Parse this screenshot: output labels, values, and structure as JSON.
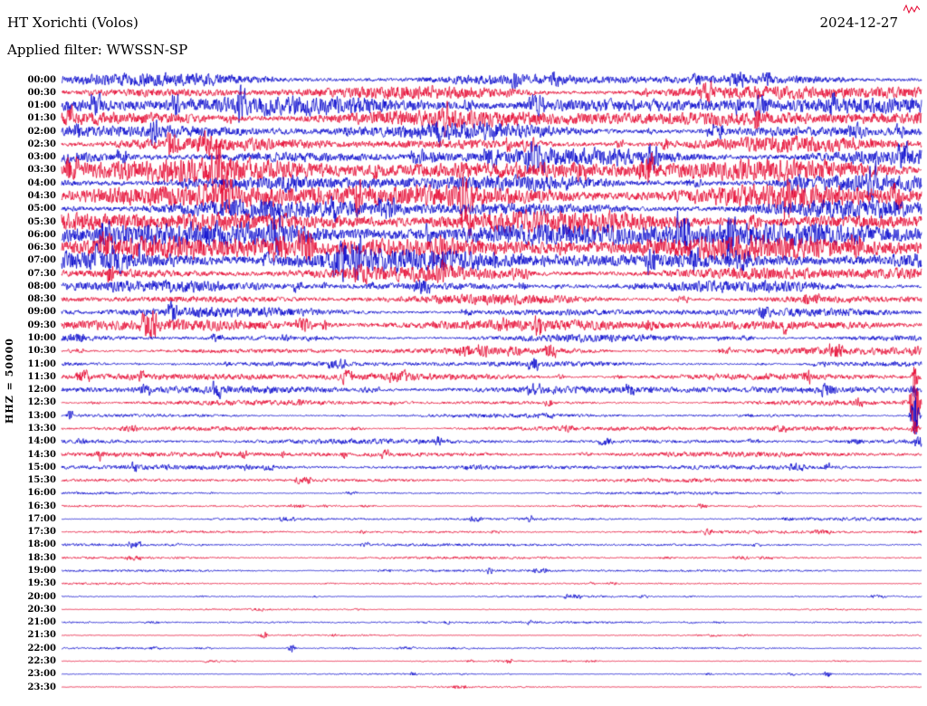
{
  "header": {
    "station": "HT Xorichti (Volos)",
    "date": "2024-12-27",
    "filter_label": "Applied filter: WWSSN-SP"
  },
  "axis": {
    "ylabel": "HHZ = 50000"
  },
  "chart_data": {
    "type": "line",
    "subtype": "helicorder-seismogram",
    "title": "HT Xorichti (Volos)",
    "date": "2024-12-27",
    "filter": "WWSSN-SP",
    "channel": "HHZ",
    "scale": 50000,
    "row_interval_minutes": 30,
    "grid": false,
    "legend": "none",
    "colors": {
      "blue": "#0000cc",
      "red": "#e4002c"
    },
    "rows": [
      {
        "time": "00:00",
        "color": "blue",
        "amplitude": 9
      },
      {
        "time": "00:30",
        "color": "red",
        "amplitude": 9.5
      },
      {
        "time": "01:00",
        "color": "blue",
        "amplitude": 10
      },
      {
        "time": "01:30",
        "color": "red",
        "amplitude": 10
      },
      {
        "time": "02:00",
        "color": "blue",
        "amplitude": 11
      },
      {
        "time": "02:30",
        "color": "red",
        "amplitude": 11
      },
      {
        "time": "03:00",
        "color": "blue",
        "amplitude": 12
      },
      {
        "time": "03:30",
        "color": "red",
        "amplitude": 12.5
      },
      {
        "time": "04:00",
        "color": "blue",
        "amplitude": 13
      },
      {
        "time": "04:30",
        "color": "red",
        "amplitude": 13
      },
      {
        "time": "05:00",
        "color": "blue",
        "amplitude": 13
      },
      {
        "time": "05:30",
        "color": "red",
        "amplitude": 13
      },
      {
        "time": "06:00",
        "color": "blue",
        "amplitude": 12.5
      },
      {
        "time": "06:30",
        "color": "red",
        "amplitude": 12
      },
      {
        "time": "07:00",
        "color": "blue",
        "amplitude": 11.5
      },
      {
        "time": "07:30",
        "color": "red",
        "amplitude": 11
      },
      {
        "time": "08:00",
        "color": "blue",
        "amplitude": 9
      },
      {
        "time": "08:30",
        "color": "red",
        "amplitude": 7.5
      },
      {
        "time": "09:00",
        "color": "blue",
        "amplitude": 6.5
      },
      {
        "time": "09:30",
        "color": "red",
        "amplitude": 6
      },
      {
        "time": "10:00",
        "color": "blue",
        "amplitude": 5.5
      },
      {
        "time": "10:30",
        "color": "red",
        "amplitude": 5
      },
      {
        "time": "11:00",
        "color": "blue",
        "amplitude": 4.5
      },
      {
        "time": "11:30",
        "color": "red",
        "amplitude": 4.2
      },
      {
        "time": "12:00",
        "color": "blue",
        "amplitude": 3.8
      },
      {
        "time": "12:30",
        "color": "red",
        "amplitude": 3.5
      },
      {
        "time": "13:00",
        "color": "blue",
        "amplitude": 3.2
      },
      {
        "time": "13:30",
        "color": "red",
        "amplitude": 3
      },
      {
        "time": "14:00",
        "color": "blue",
        "amplitude": 2.8
      },
      {
        "time": "14:30",
        "color": "red",
        "amplitude": 2.6
      },
      {
        "time": "15:00",
        "color": "blue",
        "amplitude": 2.4
      },
      {
        "time": "15:30",
        "color": "red",
        "amplitude": 2.2
      },
      {
        "time": "16:00",
        "color": "blue",
        "amplitude": 2
      },
      {
        "time": "16:30",
        "color": "red",
        "amplitude": 1.9
      },
      {
        "time": "17:00",
        "color": "blue",
        "amplitude": 1.8
      },
      {
        "time": "17:30",
        "color": "red",
        "amplitude": 1.6
      },
      {
        "time": "18:00",
        "color": "blue",
        "amplitude": 1.5
      },
      {
        "time": "18:30",
        "color": "red",
        "amplitude": 1.4
      },
      {
        "time": "19:00",
        "color": "blue",
        "amplitude": 1.3
      },
      {
        "time": "19:30",
        "color": "red",
        "amplitude": 1.2
      },
      {
        "time": "20:00",
        "color": "blue",
        "amplitude": 1.2
      },
      {
        "time": "20:30",
        "color": "red",
        "amplitude": 1.1
      },
      {
        "time": "21:00",
        "color": "blue",
        "amplitude": 1.1
      },
      {
        "time": "21:30",
        "color": "red",
        "amplitude": 1.1
      },
      {
        "time": "22:00",
        "color": "blue",
        "amplitude": 1
      },
      {
        "time": "22:30",
        "color": "red",
        "amplitude": 1
      },
      {
        "time": "23:00",
        "color": "blue",
        "amplitude": 1
      },
      {
        "time": "23:30",
        "color": "red",
        "amplitude": 1
      }
    ],
    "events": [
      {
        "time": "10:30",
        "x_frac": 0.992,
        "amplitude": 6
      },
      {
        "time": "11:30",
        "x_frac": 0.992,
        "amplitude": 10
      },
      {
        "time": "12:00",
        "x_frac": 0.992,
        "amplitude": 8
      },
      {
        "time": "12:30",
        "x_frac": 0.992,
        "amplitude": 55
      },
      {
        "time": "13:00",
        "x_frac": 0.992,
        "amplitude": 25
      },
      {
        "time": "13:30",
        "x_frac": 0.992,
        "amplitude": 8
      },
      {
        "time": "13:00",
        "x_frac": 0.01,
        "amplitude": 7
      },
      {
        "time": "14:30",
        "x_frac": 0.045,
        "amplitude": 6
      },
      {
        "time": "14:30",
        "x_frac": 0.33,
        "amplitude": 4
      },
      {
        "time": "15:00",
        "x_frac": 0.215,
        "amplitude": 4
      },
      {
        "time": "17:00",
        "x_frac": 0.545,
        "amplitude": 4
      },
      {
        "time": "21:30",
        "x_frac": 0.235,
        "amplitude": 4
      },
      {
        "time": "22:00",
        "x_frac": 0.268,
        "amplitude": 5
      },
      {
        "time": "22:30",
        "x_frac": 0.52,
        "amplitude": 3
      },
      {
        "time": "23:00",
        "x_frac": 0.89,
        "amplitude": 3
      }
    ]
  }
}
